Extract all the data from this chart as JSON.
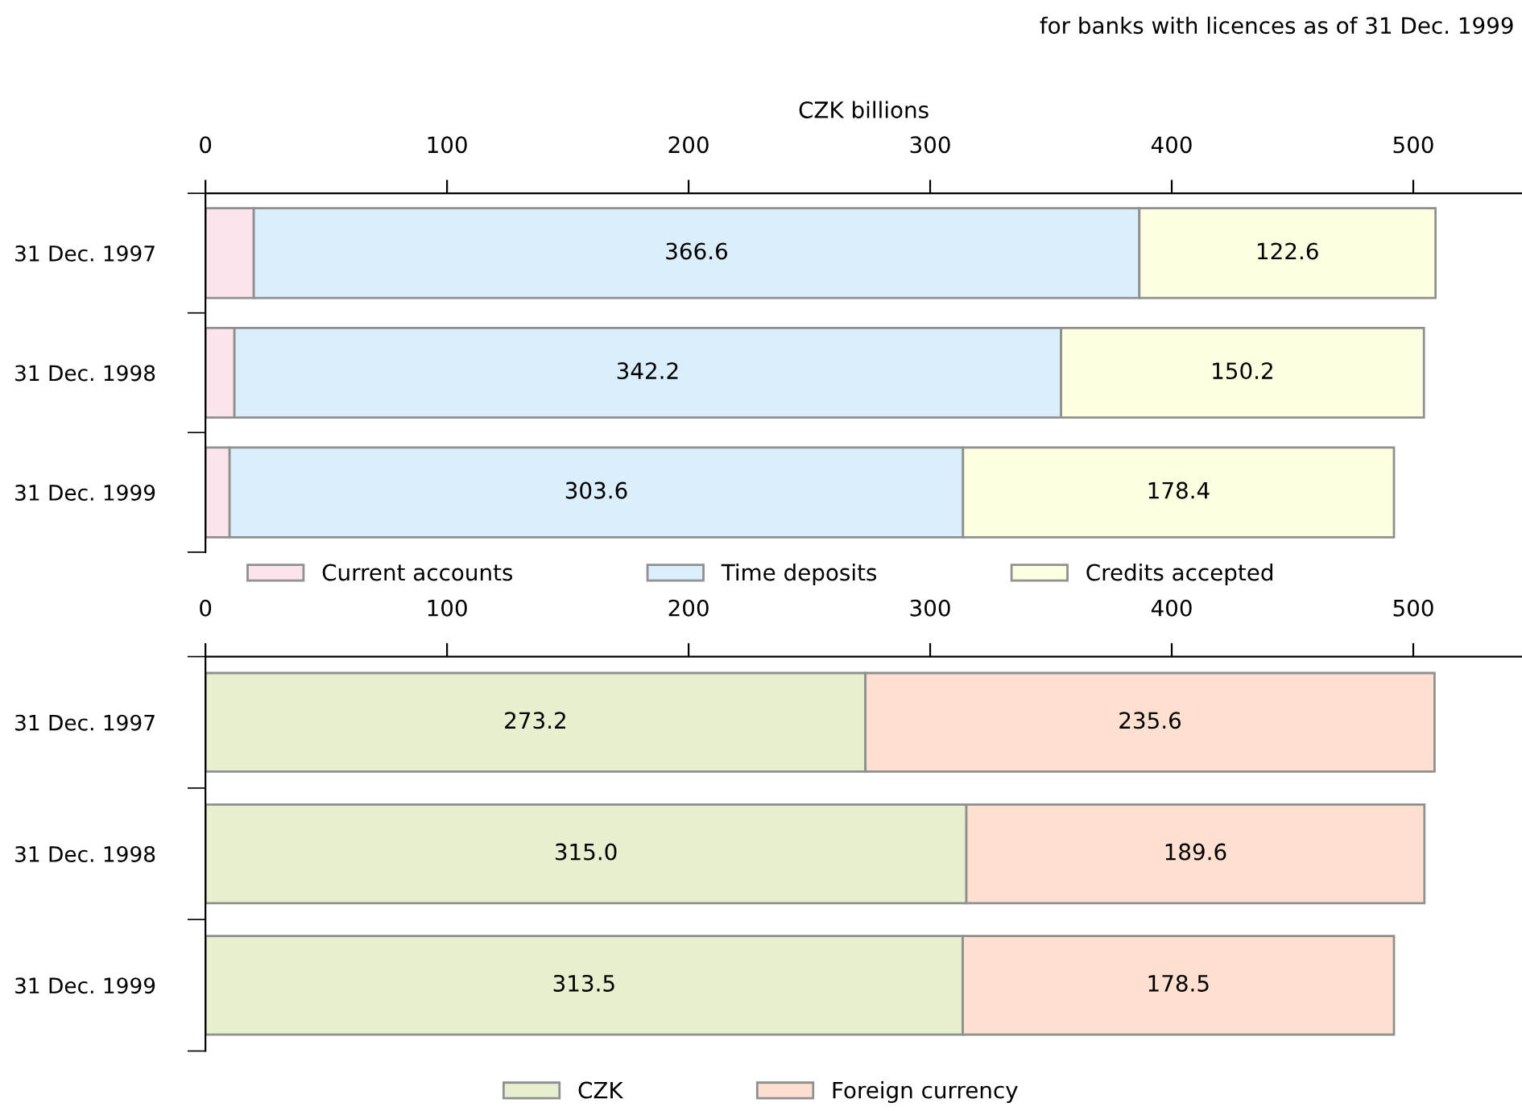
{
  "chart_data": [
    {
      "type": "bar",
      "orientation": "horizontal",
      "stacked": true,
      "xlabel": "CZK billions",
      "annotations": [
        "for banks with licences as of 31 Dec. 1999"
      ],
      "categories": [
        "31 Dec. 1997",
        "31 Dec. 1998",
        "31 Dec. 1999"
      ],
      "series": [
        {
          "name": "Current accounts",
          "color": "#fce4ec",
          "values": [
            20,
            12,
            10
          ]
        },
        {
          "name": "Time deposits",
          "color": "#dbeefb",
          "values": [
            366.6,
            342.2,
            303.6
          ],
          "value_labels": [
            "366.6",
            "342.2",
            "303.6"
          ]
        },
        {
          "name": "Credits accepted",
          "color": "#fefee0",
          "values": [
            122.6,
            150.2,
            178.4
          ],
          "value_labels": [
            "122.6",
            "150.2",
            "178.4"
          ]
        }
      ],
      "xlim": [
        0,
        545
      ],
      "xticks": [
        0,
        100,
        200,
        300,
        400,
        500
      ],
      "grid": false,
      "legend": "bottom"
    },
    {
      "type": "bar",
      "orientation": "horizontal",
      "stacked": true,
      "categories": [
        "31 Dec. 1997",
        "31 Dec. 1998",
        "31 Dec. 1999"
      ],
      "series": [
        {
          "name": "CZK",
          "color": "#e6f0cf",
          "values": [
            273.2,
            315.0,
            313.5
          ],
          "value_labels": [
            "273.2",
            "315.0",
            "313.5"
          ]
        },
        {
          "name": "Foreign currency",
          "color": "#fde0d0",
          "values": [
            235.6,
            189.6,
            178.5
          ],
          "value_labels": [
            "235.6",
            "189.6",
            "178.5"
          ]
        }
      ],
      "xlim": [
        0,
        545
      ],
      "xticks": [
        0,
        100,
        200,
        300,
        400,
        500
      ],
      "grid": false,
      "legend": "bottom"
    }
  ]
}
